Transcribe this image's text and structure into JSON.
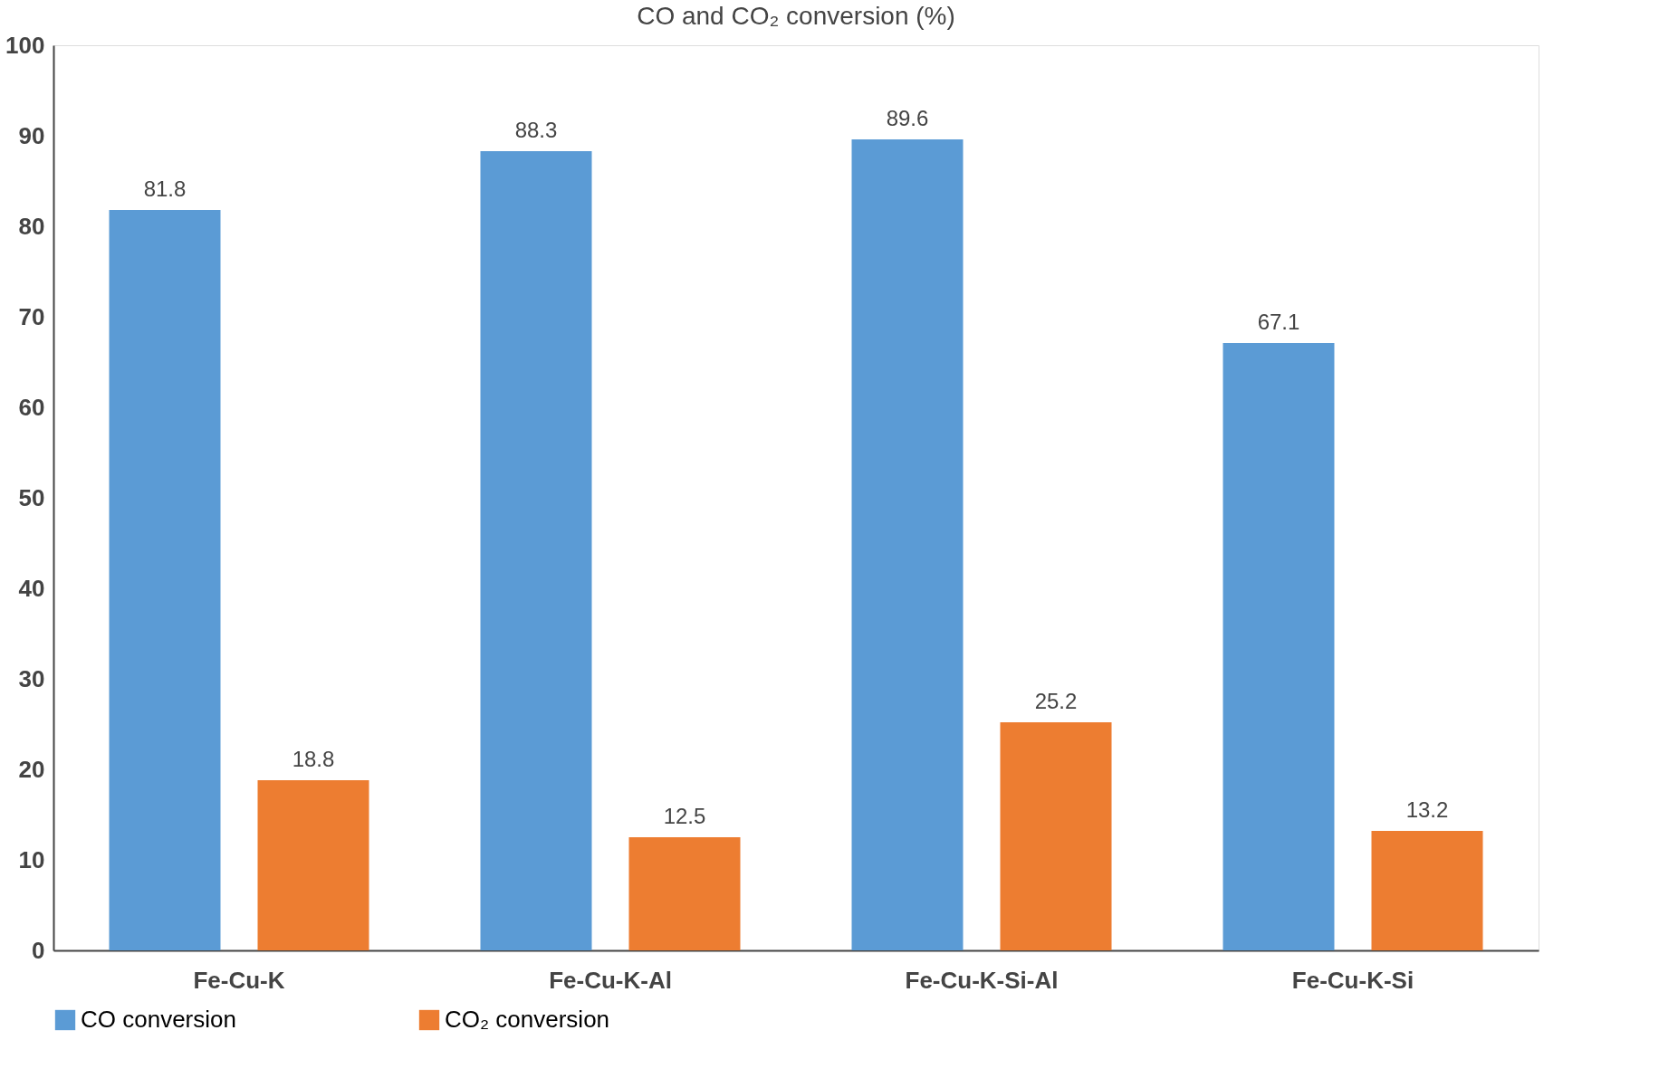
{
  "chart_data": {
    "type": "bar",
    "title": "CO and CO₂ conversion (%)",
    "categories": [
      "Fe-Cu-K",
      "Fe-Cu-K-Al",
      "Fe-Cu-K-Si-Al",
      "Fe-Cu-K-Si"
    ],
    "series": [
      {
        "name": "CO conversion",
        "color": "#5b9bd5",
        "values": [
          81.8,
          88.3,
          89.6,
          67.1
        ]
      },
      {
        "name": "CO₂ conversion",
        "color": "#ed7d31",
        "values": [
          18.8,
          12.5,
          25.2,
          13.2
        ]
      }
    ],
    "ylim": [
      0,
      100
    ],
    "yticks": [
      0,
      10,
      20,
      30,
      40,
      50,
      60,
      70,
      80,
      90,
      100
    ],
    "data_labels": true,
    "grid": false,
    "legend": "bottom"
  }
}
